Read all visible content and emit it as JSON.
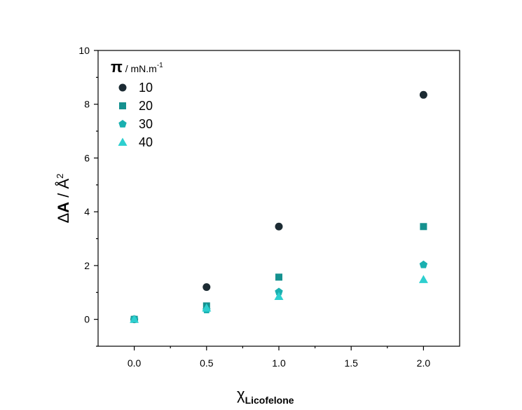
{
  "chart_data": {
    "type": "scatter",
    "title": "",
    "xlabel": {
      "symbol": "χ",
      "subscript": "Licofelone"
    },
    "ylabel": {
      "prefix": "Δ",
      "bold": "A",
      "middle": " / Å",
      "sup": "2"
    },
    "xlim": [
      -0.25,
      2.25
    ],
    "ylim": [
      -1,
      10
    ],
    "xticks": [
      {
        "value": 0.0,
        "label": "0.0"
      },
      {
        "value": 0.5,
        "label": "0.5"
      },
      {
        "value": 1.0,
        "label": "1.0"
      },
      {
        "value": 1.5,
        "label": "1.5"
      },
      {
        "value": 2.0,
        "label": "2.0"
      }
    ],
    "yticks": [
      {
        "value": 0,
        "label": "0"
      },
      {
        "value": 2,
        "label": "2"
      },
      {
        "value": 4,
        "label": "4"
      },
      {
        "value": 6,
        "label": "6"
      },
      {
        "value": 8,
        "label": "8"
      },
      {
        "value": 10,
        "label": "10"
      }
    ],
    "grid": false,
    "legend": {
      "placement": "top-left",
      "title": {
        "symbol": "π",
        "text": " / mN.m",
        "sup": "-1"
      }
    },
    "x": [
      0.0,
      0.5,
      1.0,
      2.0
    ],
    "series": [
      {
        "name": "10",
        "marker": "circle",
        "color": "#1c2b33",
        "values": [
          0.0,
          1.2,
          3.45,
          8.35
        ]
      },
      {
        "name": "20",
        "marker": "square",
        "color": "#15918f",
        "values": [
          0.0,
          0.5,
          1.57,
          3.45
        ]
      },
      {
        "name": "30",
        "marker": "pentagon",
        "color": "#1ab0b0",
        "values": [
          0.0,
          0.35,
          1.02,
          2.03
        ]
      },
      {
        "name": "40",
        "marker": "triangle",
        "color": "#2dcfcf",
        "values": [
          0.0,
          0.42,
          0.85,
          1.48
        ]
      }
    ]
  }
}
